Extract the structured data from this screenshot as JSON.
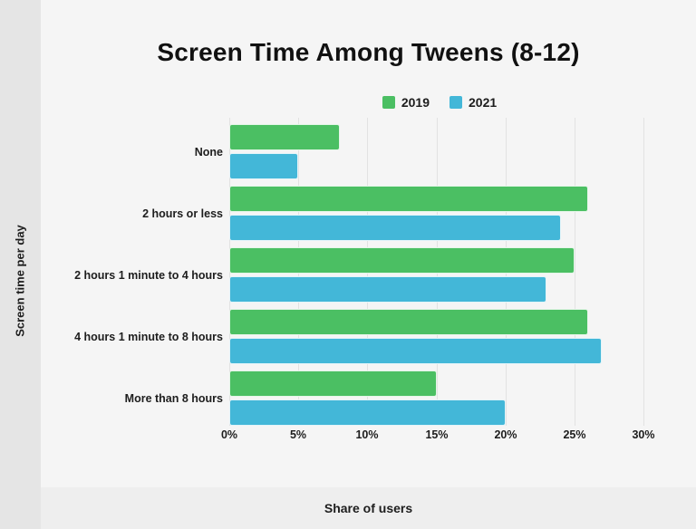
{
  "page": {
    "title": "Screen Time Among Tweens (8-12)",
    "y_axis_label": "Screen time per day",
    "x_axis_label": "Share of users"
  },
  "colors": {
    "background": "#f5f5f5",
    "left_band": "#e5e5e5",
    "bottom_band": "#eeeeee",
    "gridline": "#e2e2e2",
    "series_2019": "#4bbf63",
    "series_2021": "#43b7d8",
    "text": "#1d1d1d"
  },
  "chart_data": {
    "type": "bar",
    "orientation": "horizontal",
    "title": "Screen Time Among Tweens (8-12)",
    "xlabel": "Share of users",
    "ylabel": "Screen time per day",
    "categories": [
      "None",
      "2 hours or less",
      "2 hours 1 minute to 4 hours",
      "4 hours 1 minute to 8 hours",
      "More than 8 hours"
    ],
    "series": [
      {
        "name": "2019",
        "color": "#4bbf63",
        "values": [
          8,
          26,
          25,
          26,
          15
        ]
      },
      {
        "name": "2021",
        "color": "#43b7d8",
        "values": [
          5,
          24,
          23,
          27,
          20
        ]
      }
    ],
    "x_ticks": [
      "0%",
      "5%",
      "10%",
      "15%",
      "20%",
      "25%",
      "30%"
    ],
    "xlim": [
      0,
      30
    ],
    "grid": true,
    "legend_position": "top-center"
  }
}
